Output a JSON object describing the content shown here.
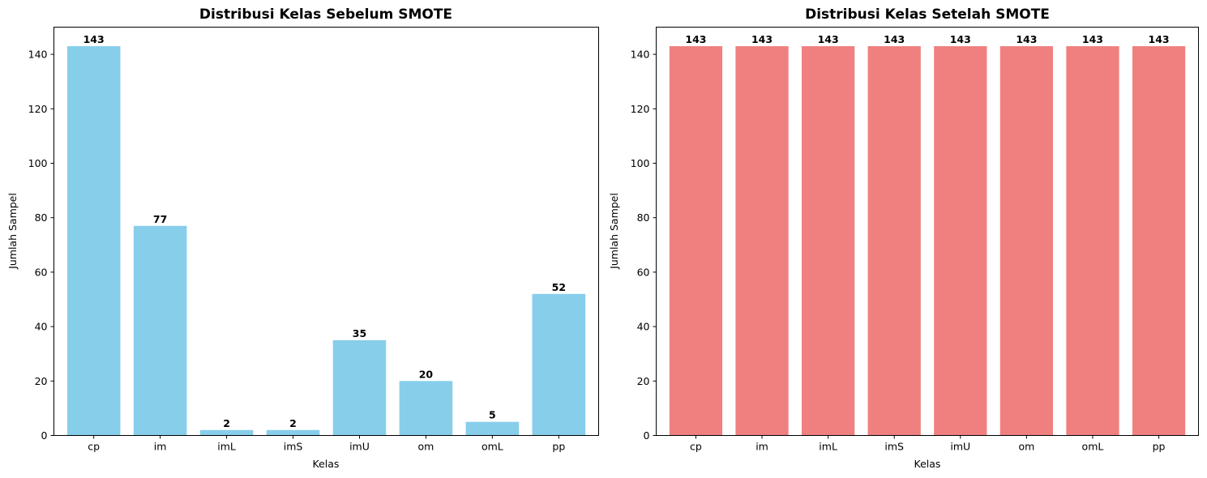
{
  "chart_data": [
    {
      "type": "bar",
      "title": "Distribusi Kelas Sebelum SMOTE",
      "xlabel": "Kelas",
      "ylabel": "Jumlah Sampel",
      "categories": [
        "cp",
        "im",
        "imL",
        "imS",
        "imU",
        "om",
        "omL",
        "pp"
      ],
      "values": [
        143,
        77,
        2,
        2,
        35,
        20,
        5,
        52
      ],
      "data_labels": [
        "143",
        "77",
        "2",
        "2",
        "35",
        "20",
        "5",
        "52"
      ],
      "yticks": [
        0,
        20,
        40,
        60,
        80,
        100,
        120,
        140
      ],
      "ytick_labels": [
        "0",
        "20",
        "40",
        "60",
        "80",
        "100",
        "120",
        "140"
      ],
      "ylim": [
        0,
        150
      ],
      "grid": false,
      "color": "#87CEEB"
    },
    {
      "type": "bar",
      "title": "Distribusi Kelas Setelah SMOTE",
      "xlabel": "Kelas",
      "ylabel": "Jumlah Sampel",
      "categories": [
        "cp",
        "im",
        "imL",
        "imS",
        "imU",
        "om",
        "omL",
        "pp"
      ],
      "values": [
        143,
        143,
        143,
        143,
        143,
        143,
        143,
        143
      ],
      "data_labels": [
        "143",
        "143",
        "143",
        "143",
        "143",
        "143",
        "143",
        "143"
      ],
      "yticks": [
        0,
        20,
        40,
        60,
        80,
        100,
        120,
        140
      ],
      "ytick_labels": [
        "0",
        "20",
        "40",
        "60",
        "80",
        "100",
        "120",
        "140"
      ],
      "ylim": [
        0,
        150
      ],
      "grid": false,
      "color": "#F08080"
    }
  ]
}
